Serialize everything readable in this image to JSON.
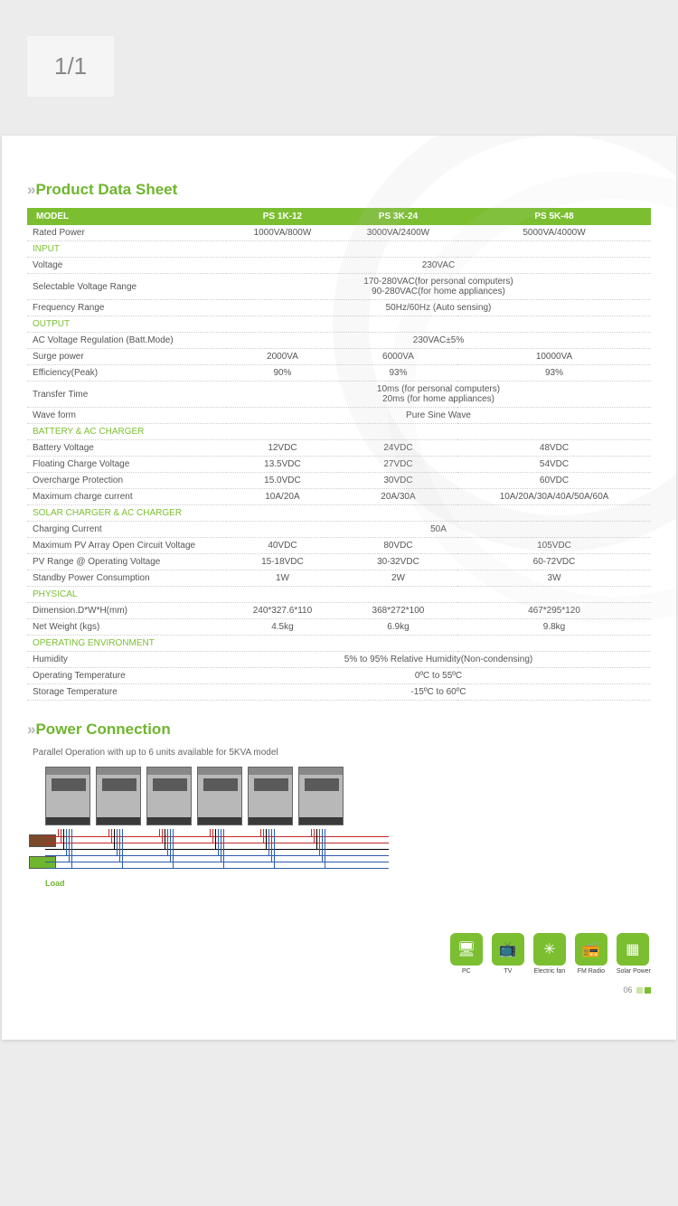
{
  "viewer": {
    "page_counter": "1/1"
  },
  "colors": {
    "accent": "#7bbf31",
    "header_bg": "#7bbf31",
    "text": "#555555",
    "border": "#cfcfcf"
  },
  "sheet": {
    "title": "Product Data Sheet",
    "header": {
      "model_label": "MODEL",
      "cols": [
        "PS 1K-12",
        "PS 3K-24",
        "PS 5K-48"
      ]
    },
    "rows": [
      {
        "type": "data",
        "label": "Rated Power",
        "vals": [
          "1000VA/800W",
          "3000VA/2400W",
          "5000VA/4000W"
        ]
      },
      {
        "type": "section",
        "label": "INPUT"
      },
      {
        "type": "span",
        "label": "Voltage",
        "val": "230VAC"
      },
      {
        "type": "span2",
        "label": "Selectable Voltage Range",
        "val1": "170-280VAC(for personal computers)",
        "val2": "90-280VAC(for home appliances)"
      },
      {
        "type": "span",
        "label": "Frequency Range",
        "val": "50Hz/60Hz (Auto sensing)"
      },
      {
        "type": "section",
        "label": "OUTPUT"
      },
      {
        "type": "span",
        "label": "AC Voltage Regulation (Batt.Mode)",
        "val": "230VAC±5%"
      },
      {
        "type": "data",
        "label": "Surge power",
        "vals": [
          "2000VA",
          "6000VA",
          "10000VA"
        ]
      },
      {
        "type": "data",
        "label": "Efficiency(Peak)",
        "vals": [
          "90%",
          "93%",
          "93%"
        ]
      },
      {
        "type": "span2",
        "label": "Transfer Time",
        "val1": "10ms (for personal computers)",
        "val2": "20ms (for home appliances)"
      },
      {
        "type": "span",
        "label": "Wave form",
        "val": "Pure Sine Wave"
      },
      {
        "type": "section",
        "label": "BATTERY & AC CHARGER"
      },
      {
        "type": "data",
        "label": "Battery Voltage",
        "vals": [
          "12VDC",
          "24VDC",
          "48VDC"
        ]
      },
      {
        "type": "data",
        "label": "Floating Charge Voltage",
        "vals": [
          "13.5VDC",
          "27VDC",
          "54VDC"
        ]
      },
      {
        "type": "data",
        "label": "Overcharge Protection",
        "vals": [
          "15.0VDC",
          "30VDC",
          "60VDC"
        ]
      },
      {
        "type": "data",
        "label": "Maximum charge current",
        "vals": [
          "10A/20A",
          "20A/30A",
          "10A/20A/30A/40A/50A/60A"
        ]
      },
      {
        "type": "section",
        "label": "SOLAR CHARGER & AC CHARGER"
      },
      {
        "type": "span",
        "label": "Charging Current",
        "val": "50A"
      },
      {
        "type": "data",
        "label": "Maximum PV Array Open Circuit Voltage",
        "vals": [
          "40VDC",
          "80VDC",
          "105VDC"
        ]
      },
      {
        "type": "data",
        "label": "PV Range @ Operating Voltage",
        "vals": [
          "15-18VDC",
          "30-32VDC",
          "60-72VDC"
        ]
      },
      {
        "type": "data",
        "label": "Standby Power Consumption",
        "vals": [
          "1W",
          "2W",
          "3W"
        ]
      },
      {
        "type": "section",
        "label": "PHYSICAL"
      },
      {
        "type": "data",
        "label": "Dimension.D*W*H(mm)",
        "vals": [
          "240*327.6*110",
          "368*272*100",
          "467*295*120"
        ]
      },
      {
        "type": "data",
        "label": "Net Weight (kgs)",
        "vals": [
          "4.5kg",
          "6.9kg",
          "9.8kg"
        ]
      },
      {
        "type": "section",
        "label": "OPERATING ENVIRONMENT"
      },
      {
        "type": "span",
        "label": "Humidity",
        "val": "5% to 95% Relative Humidity(Non-condensing)"
      },
      {
        "type": "span",
        "label": "Operating Temperature",
        "val": "0ºC to 55ºC"
      },
      {
        "type": "span",
        "label": "Storage Temperature",
        "val": "-15ºC to 60ºC"
      }
    ]
  },
  "power": {
    "title": "Power Connection",
    "note": "Parallel Operation with up to 6 units available for 5KVA model",
    "unit_count": 6,
    "load_label": "Load",
    "wire_colors": [
      "#c62828",
      "#c62828",
      "#000000",
      "#2a5caa",
      "#2a5caa",
      "#2a5caa"
    ]
  },
  "app_icons": [
    {
      "name": "pc-icon",
      "label": "PC",
      "glyph": "🖥"
    },
    {
      "name": "tv-icon",
      "label": "TV",
      "glyph": "📺"
    },
    {
      "name": "fan-icon",
      "label": "Electric fan",
      "glyph": "✳"
    },
    {
      "name": "radio-icon",
      "label": "FM Radio",
      "glyph": "📻"
    },
    {
      "name": "solar-icon",
      "label": "Solar Power",
      "glyph": "▦"
    }
  ],
  "page_number": "06"
}
